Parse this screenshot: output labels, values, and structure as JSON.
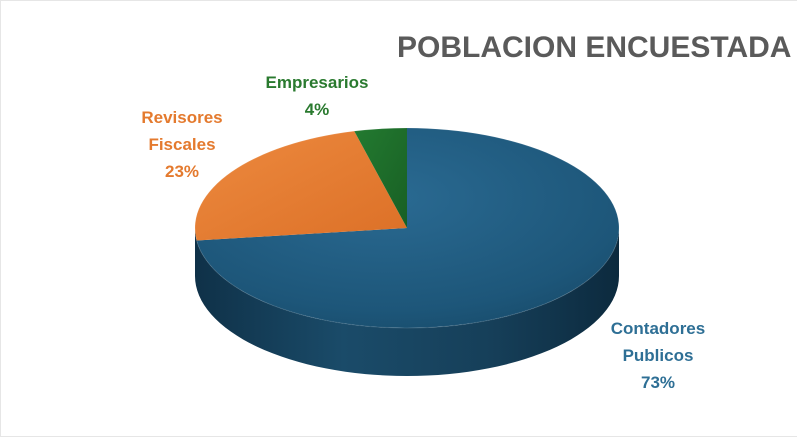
{
  "chart_data": {
    "type": "pie",
    "title": "POBLACION ENCUESTADA",
    "slices": [
      {
        "label": [
          "Contadores",
          "Publicos"
        ],
        "percent_label": "73%",
        "value": 73,
        "color": "#1f5a7d",
        "label_color": "#2e6f95"
      },
      {
        "label": [
          "Revisores",
          "Fiscales"
        ],
        "percent_label": "23%",
        "value": 23,
        "color": "#e47a2e",
        "label_color": "#e47a2e"
      },
      {
        "label": [
          "Empresarios"
        ],
        "percent_label": "4%",
        "value": 4,
        "color": "#1e6a2a",
        "label_color": "#2a7a2f"
      }
    ],
    "legend": "none",
    "style": "3d"
  },
  "colors": {
    "title": "#5a5a5a",
    "background": "#ffffff"
  }
}
